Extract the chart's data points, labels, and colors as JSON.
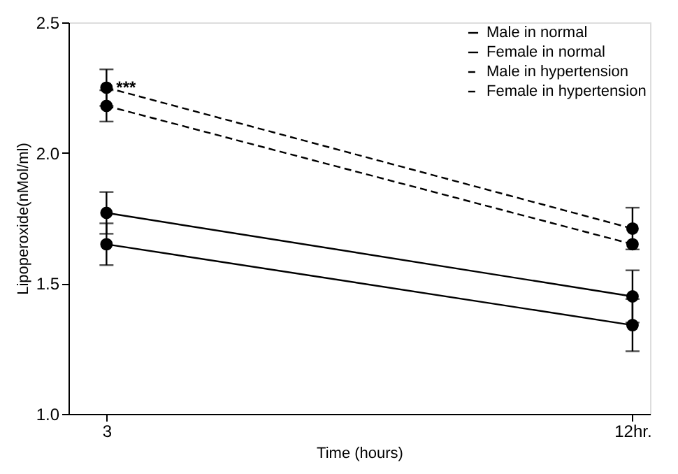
{
  "chart_data": {
    "type": "line",
    "xlabel": "Time (hours)",
    "ylabel": "Lipoperoxide(nMol/ml)",
    "x": [
      3,
      12
    ],
    "xlim": [
      2.35,
      12.3
    ],
    "xticks": [
      3,
      {
        "value": 12,
        "label": "12hr."
      }
    ],
    "ylim": [
      1.0,
      2.5
    ],
    "yticks": [
      {
        "value": 1,
        "label": "1.0"
      },
      {
        "value": 1.5,
        "label": "1.5"
      },
      {
        "value": 2,
        "label": "2.0"
      },
      {
        "value": 2.5,
        "label": "2.5"
      }
    ],
    "series": [
      {
        "name": "Male in normal",
        "color": "#000000",
        "values": [
          1.77,
          1.45
        ],
        "errors": [
          0.08,
          0.1
        ],
        "line_style": "solid"
      },
      {
        "name": "Female in normal",
        "color": "#000000",
        "values": [
          1.65,
          1.34
        ],
        "errors": [
          0.08,
          0.1
        ],
        "line_style": "solid"
      },
      {
        "name": "Male in hypertension",
        "color": "#000000",
        "values": [
          2.18,
          1.65
        ],
        "errors": [
          0.06,
          null
        ],
        "line_style": "dashed"
      },
      {
        "name": "Female in hypertension",
        "color": "#000000",
        "values": [
          2.25,
          1.71
        ],
        "errors": [
          0.07,
          0.08
        ],
        "line_style": "dashed"
      }
    ],
    "annotations": [
      {
        "text": "***",
        "x": 3,
        "y": 2.25
      }
    ],
    "marker": "circle",
    "legend": "top right",
    "grid": false
  }
}
